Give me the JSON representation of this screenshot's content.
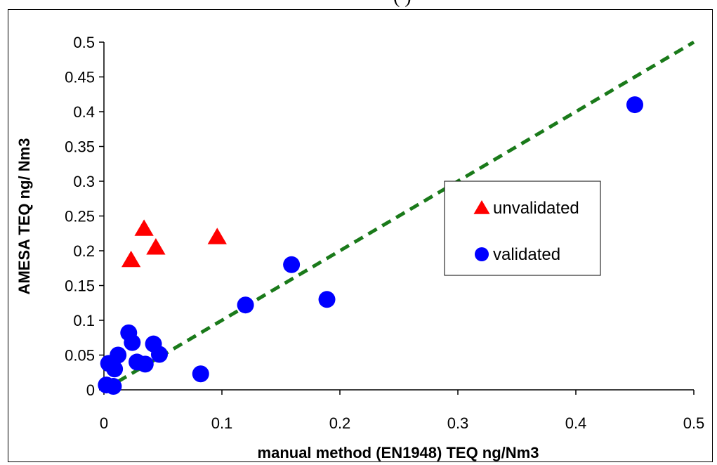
{
  "header_fragment": "(     )",
  "chart_data": {
    "type": "scatter",
    "xlabel": "manual method (EN1948) TEQ  ng/Nm3",
    "ylabel": "AMESA  TEQ  ng/ Nm3",
    "xlim": [
      0,
      0.5
    ],
    "ylim": [
      0,
      0.5
    ],
    "x_ticks": [
      "0",
      "0.1",
      "0.2",
      "0.3",
      "0.4",
      "0.5"
    ],
    "y_ticks": [
      "0",
      "0.05",
      "0.1",
      "0.15",
      "0.2",
      "0.25",
      "0.3",
      "0.35",
      "0.4",
      "0.45",
      "0.5"
    ],
    "grid": false,
    "legend_position": "right",
    "series": [
      {
        "name": "unvalidated",
        "marker": "triangle",
        "color": "#ff0000",
        "points": [
          {
            "x": 0.023,
            "y": 0.187
          },
          {
            "x": 0.034,
            "y": 0.232
          },
          {
            "x": 0.044,
            "y": 0.205
          },
          {
            "x": 0.096,
            "y": 0.22
          }
        ]
      },
      {
        "name": "validated",
        "marker": "circle",
        "color": "#0000ff",
        "points": [
          {
            "x": 0.002,
            "y": 0.007
          },
          {
            "x": 0.004,
            "y": 0.038
          },
          {
            "x": 0.008,
            "y": 0.005
          },
          {
            "x": 0.009,
            "y": 0.03
          },
          {
            "x": 0.012,
            "y": 0.05
          },
          {
            "x": 0.021,
            "y": 0.082
          },
          {
            "x": 0.024,
            "y": 0.068
          },
          {
            "x": 0.028,
            "y": 0.04
          },
          {
            "x": 0.035,
            "y": 0.037
          },
          {
            "x": 0.042,
            "y": 0.066
          },
          {
            "x": 0.047,
            "y": 0.051
          },
          {
            "x": 0.082,
            "y": 0.023
          },
          {
            "x": 0.12,
            "y": 0.122
          },
          {
            "x": 0.159,
            "y": 0.18
          },
          {
            "x": 0.189,
            "y": 0.13
          },
          {
            "x": 0.45,
            "y": 0.41
          }
        ]
      }
    ],
    "reference_line": {
      "style": "dashed",
      "color": "#1a7a1a",
      "from": [
        0,
        0
      ],
      "to": [
        0.5,
        0.5
      ]
    }
  }
}
